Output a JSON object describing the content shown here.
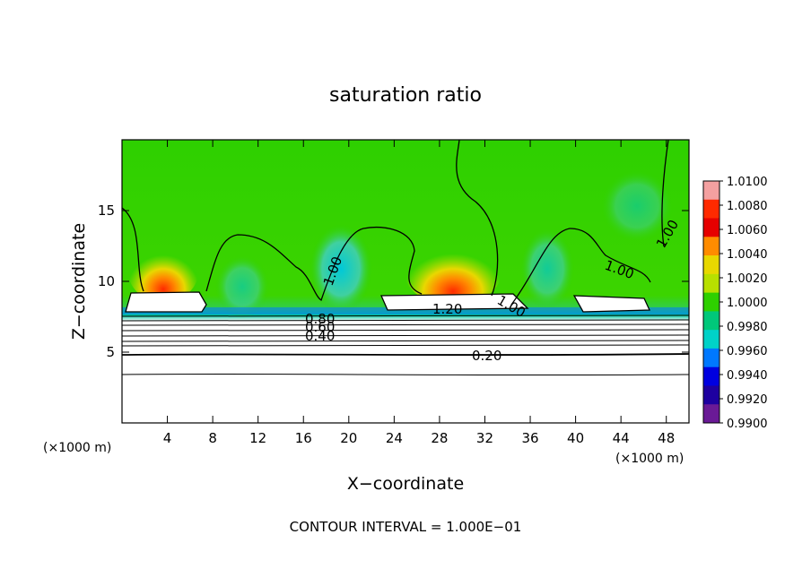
{
  "chart_data": {
    "type": "heatmap",
    "title": "saturation ratio",
    "xlabel": "X−coordinate",
    "ylabel": "Z−coordinate",
    "x_unit_left": "(×1000 m)",
    "x_unit_right": "(×1000 m)",
    "footer": "CONTOUR INTERVAL =  1.000E−01",
    "xlim": [
      0,
      50
    ],
    "ylim": [
      0,
      20
    ],
    "x_ticks": [
      4,
      8,
      12,
      16,
      20,
      24,
      28,
      32,
      36,
      40,
      44,
      48
    ],
    "y_ticks": [
      5,
      10,
      15
    ],
    "colorbar": {
      "labels": [
        "1.0100",
        "1.0080",
        "1.0060",
        "1.0040",
        "1.0020",
        "1.0000",
        "0.9980",
        "0.9960",
        "0.9940",
        "0.9920",
        "0.9900"
      ],
      "colors": [
        "#f4a0a0",
        "#ff2a00",
        "#e60000",
        "#ff8c00",
        "#e8d800",
        "#b8e000",
        "#2ed000",
        "#00c87a",
        "#00d2c8",
        "#0078ff",
        "#0000e0",
        "#1e00a0",
        "#6a1a96"
      ]
    },
    "contour_labels": [
      {
        "text": "1.00"
      },
      {
        "text": "1.00"
      },
      {
        "text": "1.00"
      },
      {
        "text": "1.00"
      },
      {
        "text": "1.20"
      },
      {
        "text": "0.80"
      },
      {
        "text": "0.60"
      },
      {
        "text": "0.40"
      },
      {
        "text": "0.20"
      }
    ]
  }
}
